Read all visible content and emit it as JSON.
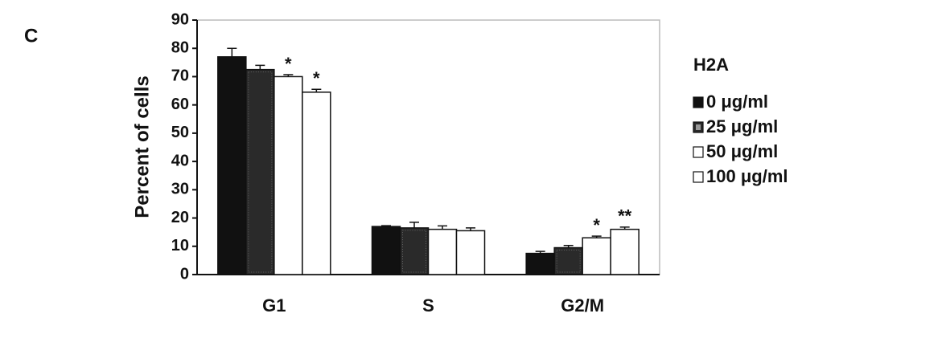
{
  "chart_data": {
    "type": "bar",
    "panel_label": "C",
    "ylabel": "Percent of cells",
    "categories": [
      "G1",
      "S",
      "G2/M"
    ],
    "legend_title": "H2A",
    "series": [
      {
        "name": "0 μg/ml",
        "color": "#111111",
        "values": [
          77,
          17,
          7.5
        ],
        "errors": [
          3,
          0.3,
          0.7
        ],
        "stars": [
          null,
          null,
          null
        ]
      },
      {
        "name": "25 μg/ml",
        "color": "#2a2a2a",
        "values": [
          72.5,
          16.5,
          9.5
        ],
        "errors": [
          1.5,
          2,
          0.8
        ],
        "stars": [
          null,
          null,
          null
        ]
      },
      {
        "name": "50 μg/ml",
        "color": "#ffffff",
        "values": [
          70,
          16,
          13
        ],
        "errors": [
          0.7,
          1.2,
          0.6
        ],
        "stars": [
          "*",
          null,
          "*"
        ]
      },
      {
        "name": "100 μg/ml",
        "color": "#ffffff",
        "values": [
          64.5,
          15.5,
          16
        ],
        "errors": [
          1,
          1,
          0.8
        ],
        "stars": [
          "*",
          null,
          "**"
        ]
      }
    ],
    "ylim": [
      0,
      90
    ],
    "yticks": [
      0,
      10,
      20,
      30,
      40,
      50,
      60,
      70,
      80,
      90
    ],
    "grid": false
  }
}
